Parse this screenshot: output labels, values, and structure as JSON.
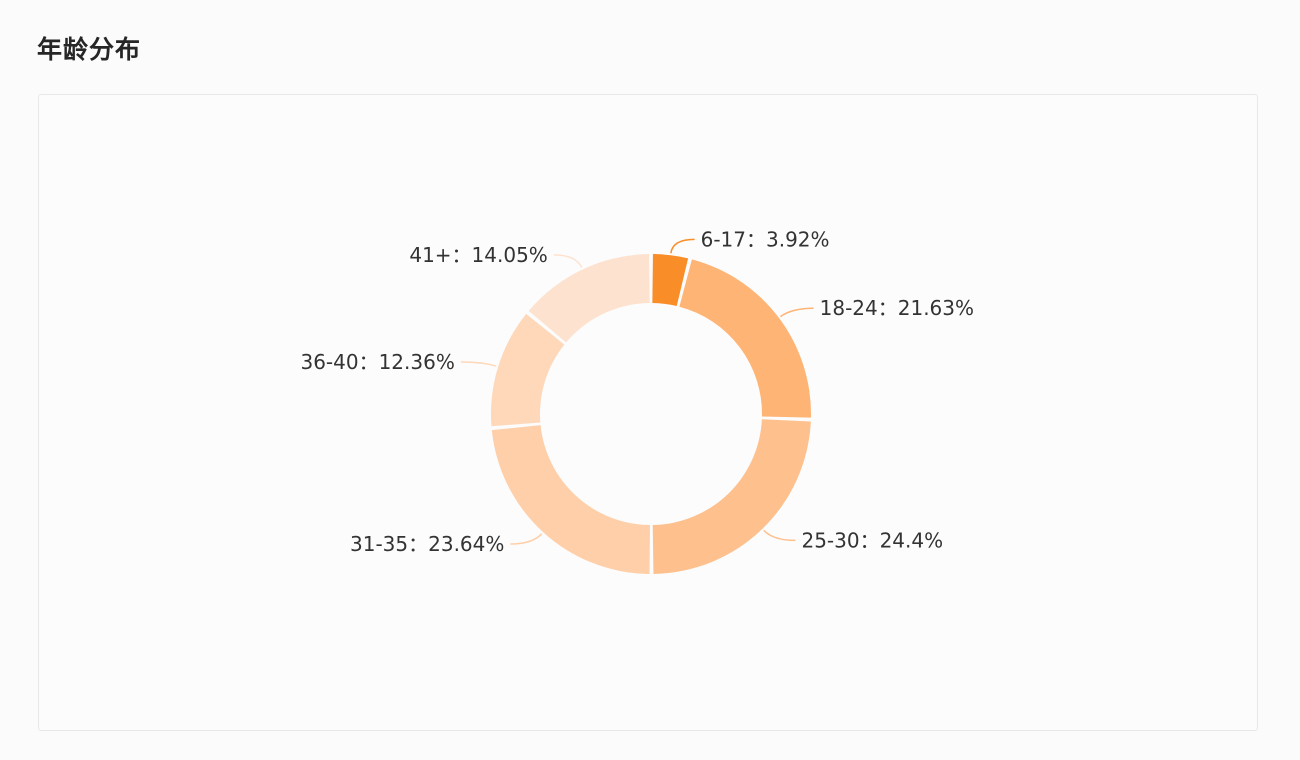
{
  "header": {
    "title": "年龄分布"
  },
  "chart_data": {
    "type": "pie",
    "donut": true,
    "start_angle_deg": 0,
    "direction": "clockwise",
    "label_separator": "：",
    "slices": [
      {
        "label": "6-17",
        "value": 3.92,
        "display": "3.92%",
        "color": "#f98d28"
      },
      {
        "label": "18-24",
        "value": 21.63,
        "display": "21.63%",
        "color": "#feb474"
      },
      {
        "label": "25-30",
        "value": 24.4,
        "display": "24.4%",
        "color": "#fec08d"
      },
      {
        "label": "31-35",
        "value": 23.64,
        "display": "23.64%",
        "color": "#fecfa8"
      },
      {
        "label": "36-40",
        "value": 12.36,
        "display": "12.36%",
        "color": "#fed8b9"
      },
      {
        "label": "41+",
        "value": 14.05,
        "display": "14.05%",
        "color": "#fde3cf"
      }
    ]
  }
}
